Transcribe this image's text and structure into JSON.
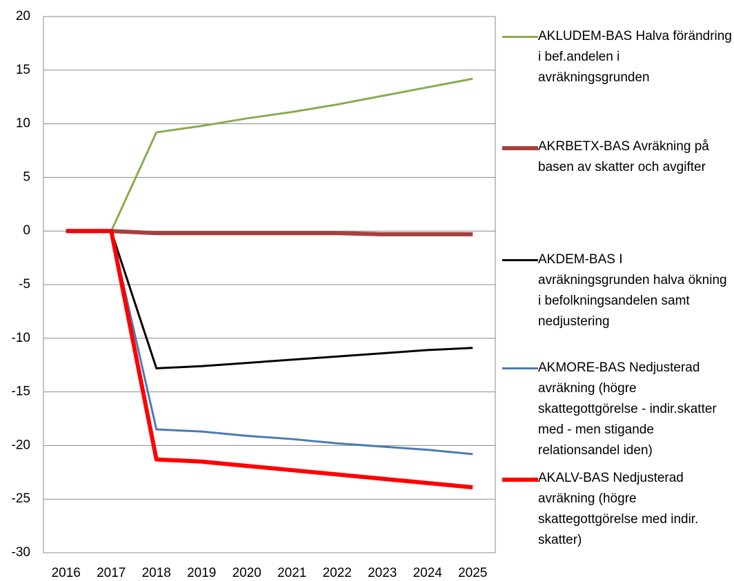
{
  "chart_data": {
    "type": "line",
    "categories": [
      "2016",
      "2017",
      "2018",
      "2019",
      "2020",
      "2021",
      "2022",
      "2023",
      "2024",
      "2025"
    ],
    "series": [
      {
        "name": "AKLUDEM-BAS Halva förändring i bef.andelen i avräkningsgrunden",
        "color": "#8aab4f",
        "values": [
          0,
          0,
          9.2,
          9.8,
          10.5,
          11.1,
          11.8,
          12.6,
          13.4,
          14.2
        ]
      },
      {
        "name": "AKRBETX-BAS Avräkning på basen av skatter och avgifter",
        "color": "#a5403e",
        "values": [
          0,
          0,
          -0.2,
          -0.2,
          -0.2,
          -0.2,
          -0.2,
          -0.3,
          -0.3,
          -0.3
        ]
      },
      {
        "name": "AKDEM-BAS I avräkningsgrunden halva ökning i befolkningsandelen samt nedjustering",
        "color": "#000000",
        "values": [
          0,
          0,
          -12.8,
          -12.6,
          -12.3,
          -12.0,
          -11.7,
          -11.4,
          -11.1,
          -10.9
        ]
      },
      {
        "name": "AKMORE-BAS Nedjusterad avräkning (högre skattegottgörelse - indir.skatter med -  men stigande relationsandel iden)",
        "color": "#4a7ab4",
        "values": [
          0,
          0,
          -18.5,
          -18.7,
          -19.1,
          -19.4,
          -19.8,
          -20.1,
          -20.4,
          -20.8
        ]
      },
      {
        "name": "AKALV-BAS Nedjusterad avräkning (högre skattegottgörelse med indir. skatter)",
        "color": "#ff0000",
        "values": [
          0,
          0,
          -21.3,
          -21.5,
          -21.9,
          -22.3,
          -22.7,
          -23.1,
          -23.5,
          -23.9
        ]
      }
    ],
    "ylim": [
      -30,
      20
    ],
    "yticks": [
      -30,
      -25,
      -20,
      -15,
      -10,
      -5,
      0,
      5,
      10,
      15,
      20
    ],
    "grid": true
  }
}
